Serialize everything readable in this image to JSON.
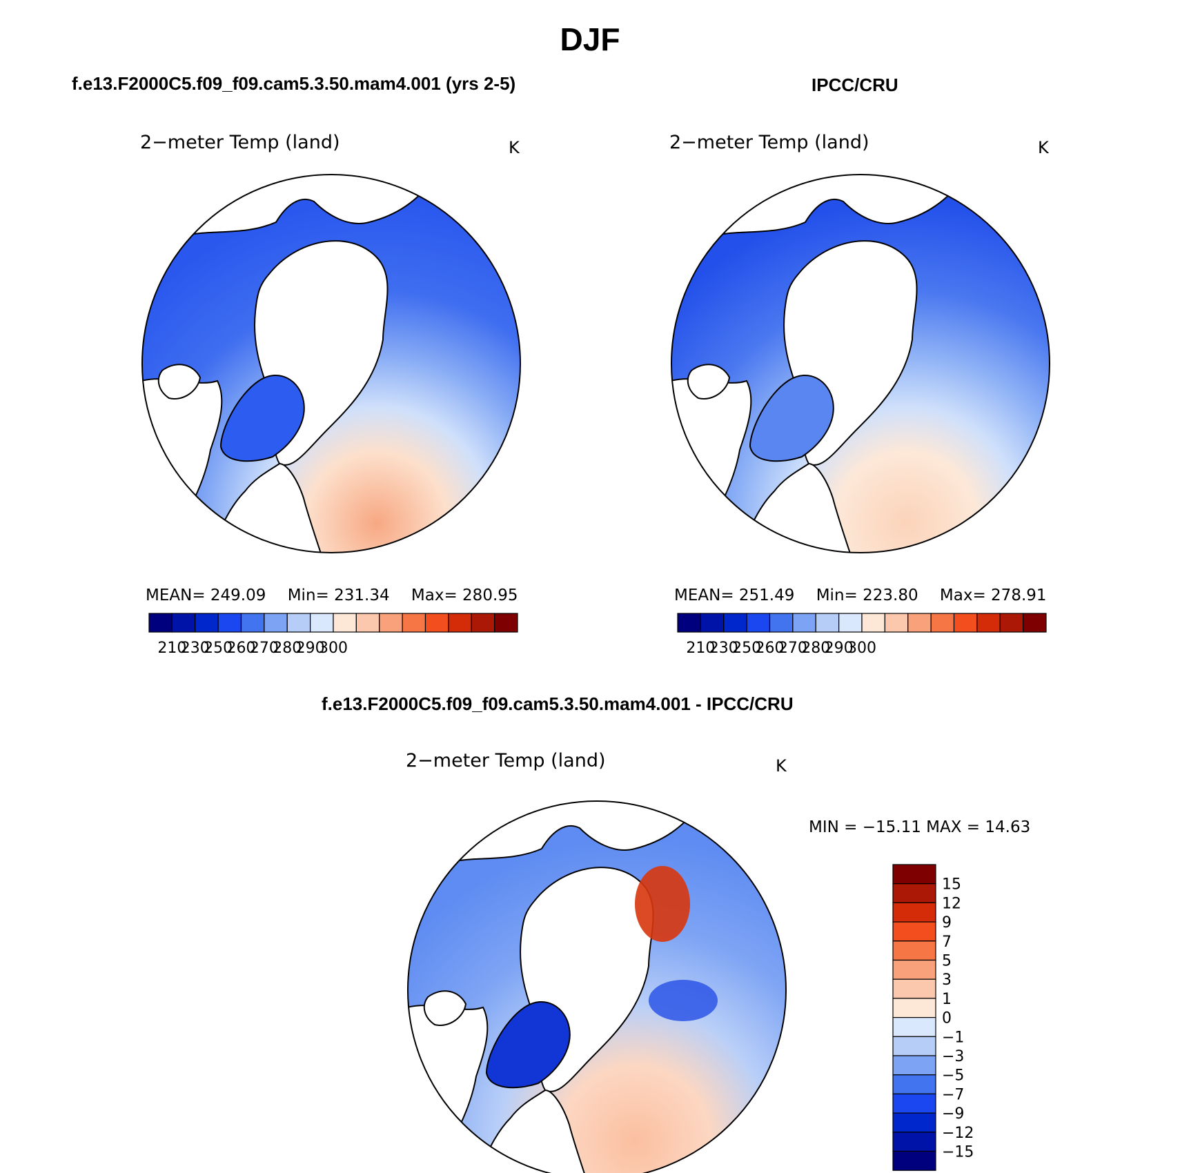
{
  "figure": {
    "title": "DJF"
  },
  "panels": [
    {
      "case_title": "f.e13.F2000C5.f09_f09.cam5.3.50.mam4.001 (yrs 2-5)",
      "plot_title": "2−meter Temp (land)",
      "units": "K",
      "stats": {
        "mean_label": "MEAN=",
        "mean": "249.09",
        "min_label": "Min=",
        "min": "231.34",
        "max_label": "Max=",
        "max": "280.95"
      }
    },
    {
      "case_title": "IPCC/CRU",
      "plot_title": "2−meter Temp (land)",
      "units": "K",
      "stats": {
        "mean_label": "MEAN=",
        "mean": "251.49",
        "min_label": "Min=",
        "min": "223.80",
        "max_label": "Max=",
        "max": "278.91"
      }
    },
    {
      "case_title": "f.e13.F2000C5.f09_f09.cam5.3.50.mam4.001 - IPCC/CRU",
      "plot_title": "2−meter Temp (land)",
      "units": "K",
      "stats_line": "MIN = −15.11 MAX =  14.63"
    }
  ],
  "colorbars": {
    "absolute": {
      "colors": [
        "#00007f",
        "#0013a8",
        "#0027cc",
        "#1b47f0",
        "#4274f0",
        "#7da3f5",
        "#b6cdf8",
        "#d9e8fc",
        "#fde8d8",
        "#fcc8ad",
        "#f9a17a",
        "#f67645",
        "#f24e1e",
        "#d42b08",
        "#ab1806",
        "#7f0000"
      ],
      "tick_labels": [
        "210",
        "230",
        "250",
        "260",
        "270",
        "280",
        "290",
        "300"
      ]
    },
    "difference": {
      "colors": [
        "#00007f",
        "#0013a8",
        "#0027cc",
        "#1b47f0",
        "#4274f0",
        "#7da3f5",
        "#b6cdf8",
        "#d9e8fc",
        "#fde8d8",
        "#fcc8ad",
        "#f9a17a",
        "#f67645",
        "#f24e1e",
        "#d42b08",
        "#ab1806",
        "#7f0000"
      ],
      "tick_labels": [
        "15",
        "12",
        "9",
        "7",
        "5",
        "3",
        "1",
        "0",
        "−1",
        "−3",
        "−5",
        "−7",
        "−9",
        "−12",
        "−15"
      ]
    }
  },
  "map": {
    "projection": "north polar stereographic",
    "variable": "2-meter temperature over land",
    "land_color": "#4a7cf2",
    "ocean_color": "#ffffff",
    "coast_color": "#000000"
  }
}
